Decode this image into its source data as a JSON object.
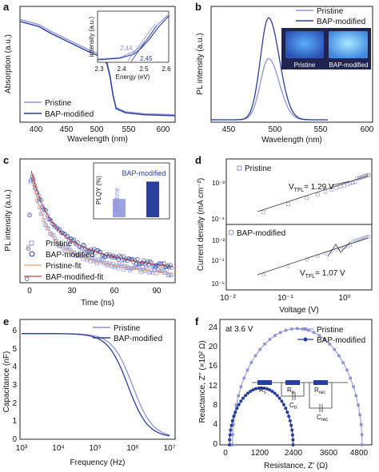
{
  "colors": {
    "pristine": "#8d93d6",
    "bap": "#2a3e9e",
    "frame": "#222222",
    "pristine_fit": "#e8a070",
    "bap_fit": "#c04040",
    "photo_bg": "#2b2f6b",
    "photo_glow": "#78c8ff"
  },
  "panels": {
    "a": {
      "letter": "a",
      "xlabel": "Wavelength (nm)",
      "ylabel": "Absorption (a.u.)",
      "xticks": [
        "400",
        "450",
        "500",
        "550",
        "600"
      ],
      "legend": [
        "Pristine",
        "BAP-modified"
      ],
      "inset": {
        "xlabel": "Energy (eV)",
        "ylabel": "intensity (a.u.)",
        "xticks": [
          "2.3",
          "2.4",
          "2.5",
          "2.6"
        ],
        "ann1": "2.44",
        "ann2": "2.45"
      }
    },
    "b": {
      "letter": "b",
      "xlabel": "Wavelength (nm)",
      "ylabel": "PL intensity (a.u.)",
      "xticks": [
        "450",
        "500",
        "550",
        "600"
      ],
      "legend": [
        "Pristine",
        "BAP-modified"
      ],
      "photo_labels": [
        "Pristine",
        "BAP-modified"
      ]
    },
    "c": {
      "letter": "c",
      "xlabel": "Time (ns)",
      "ylabel": "PL intensity (a.u.)",
      "xticks": [
        "0",
        "30",
        "60",
        "90"
      ],
      "legend": [
        "Pristine",
        "BAP-modified",
        "Pristine-fit",
        "BAP-modified-fit"
      ],
      "inset": {
        "ylabel": "PLQY (%)",
        "yticks": [
          "0",
          "25",
          "50",
          "75"
        ],
        "bar1": "Pristine",
        "bar2": "BAP-modified"
      }
    },
    "d": {
      "letter": "d",
      "xlabel": "Voltage (V)",
      "ylabel": "Current density (mA cm⁻²)",
      "xticks": [
        "10⁻²",
        "10⁻¹",
        "10⁰"
      ],
      "yticks_top": [
        "10⁻²",
        "10⁻⁴"
      ],
      "yticks_bot": [
        "10⁻²",
        "10⁻⁴",
        "10⁻⁶"
      ],
      "top_label": "Pristine",
      "bot_label": "BAP-modified",
      "vtfl_top": "V",
      "vtfl_top_sub": "TFL",
      "vtfl_top_val": "= 1.29 V",
      "vtfl_bot": "V",
      "vtfl_bot_sub": "TFL",
      "vtfl_bot_val": "= 1.07 V"
    },
    "e": {
      "letter": "e",
      "xlabel": "Frequency (Hz)",
      "ylabel": "Capacitance (nF)",
      "xticks": [
        "10³",
        "10⁴",
        "10⁵",
        "10⁶",
        "10⁷"
      ],
      "yticks": [
        "0",
        "1",
        "2",
        "3",
        "4",
        "5",
        "6"
      ],
      "legend": [
        "Pristine",
        "BAP-modified"
      ]
    },
    "f": {
      "letter": "f",
      "xlabel": "Resistance, Z' (Ω)",
      "ylabel": "Reactance, Z'' (×10² Ω)",
      "xticks": [
        "0",
        "1200",
        "2400",
        "3600",
        "4800"
      ],
      "yticks": [
        "0",
        "4",
        "8",
        "12",
        "16",
        "20",
        "24"
      ],
      "legend": [
        "Pristine",
        "BAP-modified"
      ],
      "note": "at 3.6 V",
      "circuit": [
        "R",
        "s",
        "R",
        "tr",
        "R",
        "rec",
        "C",
        "tr",
        "C",
        "rec"
      ]
    }
  },
  "chart_data": [
    {
      "panel": "a",
      "type": "line",
      "xlabel": "Wavelength (nm)",
      "ylabel": "Absorption (a.u.)",
      "xlim": [
        350,
        600
      ],
      "series": [
        {
          "name": "Pristine",
          "x": [
            350,
            380,
            400,
            420,
            440,
            460,
            480,
            490,
            495,
            500,
            505,
            520,
            550,
            600
          ],
          "y": [
            1.0,
            0.95,
            0.88,
            0.82,
            0.76,
            0.7,
            0.65,
            0.58,
            0.45,
            0.25,
            0.12,
            0.08,
            0.06,
            0.05
          ]
        },
        {
          "name": "BAP-modified",
          "x": [
            350,
            380,
            400,
            420,
            440,
            460,
            480,
            490,
            495,
            500,
            505,
            520,
            550,
            600
          ],
          "y": [
            0.98,
            0.93,
            0.86,
            0.8,
            0.74,
            0.68,
            0.63,
            0.56,
            0.43,
            0.24,
            0.11,
            0.07,
            0.05,
            0.04
          ]
        }
      ]
    },
    {
      "panel": "b",
      "type": "line",
      "xlabel": "Wavelength (nm)",
      "ylabel": "PL intensity (a.u.)",
      "xlim": [
        420,
        600
      ],
      "series": [
        {
          "name": "Pristine",
          "peak": 484,
          "max": 0.6
        },
        {
          "name": "BAP-modified",
          "peak": 484,
          "max": 1.0
        }
      ]
    },
    {
      "panel": "c",
      "type": "scatter",
      "xlabel": "Time (ns)",
      "ylabel": "PL intensity (a.u.)",
      "xlim": [
        -5,
        105
      ],
      "series": [
        {
          "name": "Pristine"
        },
        {
          "name": "BAP-modified"
        }
      ],
      "inset": {
        "type": "bar",
        "ylabel": "PLQY (%)",
        "categories": [
          "Pristine",
          "BAP-modified"
        ],
        "values": [
          37,
          72
        ],
        "ylim": [
          0,
          100
        ]
      }
    },
    {
      "panel": "d",
      "type": "scatter",
      "xlabel": "Voltage (V)",
      "ylabel": "Current density (mA cm⁻²)",
      "series": [
        {
          "name": "Pristine",
          "VTFL": 1.29
        },
        {
          "name": "BAP-modified",
          "VTFL": 1.07
        }
      ]
    },
    {
      "panel": "e",
      "type": "line",
      "xlabel": "Frequency (Hz)",
      "ylabel": "Capacitance (nF)",
      "xscale": "log",
      "xlim": [
        1000,
        10000000
      ],
      "ylim": [
        0,
        6.5
      ],
      "series": [
        {
          "name": "Pristine",
          "plateau": 5.75
        },
        {
          "name": "BAP-modified",
          "plateau": 5.75
        }
      ]
    },
    {
      "panel": "f",
      "type": "scatter",
      "xlabel": "Resistance, Z' (Ω)",
      "ylabel": "Reactance, Z'' (×10² Ω)",
      "xlim": [
        -200,
        5300
      ],
      "ylim": [
        0,
        25
      ],
      "series": [
        {
          "name": "Pristine",
          "center": 2600,
          "radius": 2350
        },
        {
          "name": "BAP-modified",
          "center": 1300,
          "radius": 1150
        }
      ]
    }
  ]
}
